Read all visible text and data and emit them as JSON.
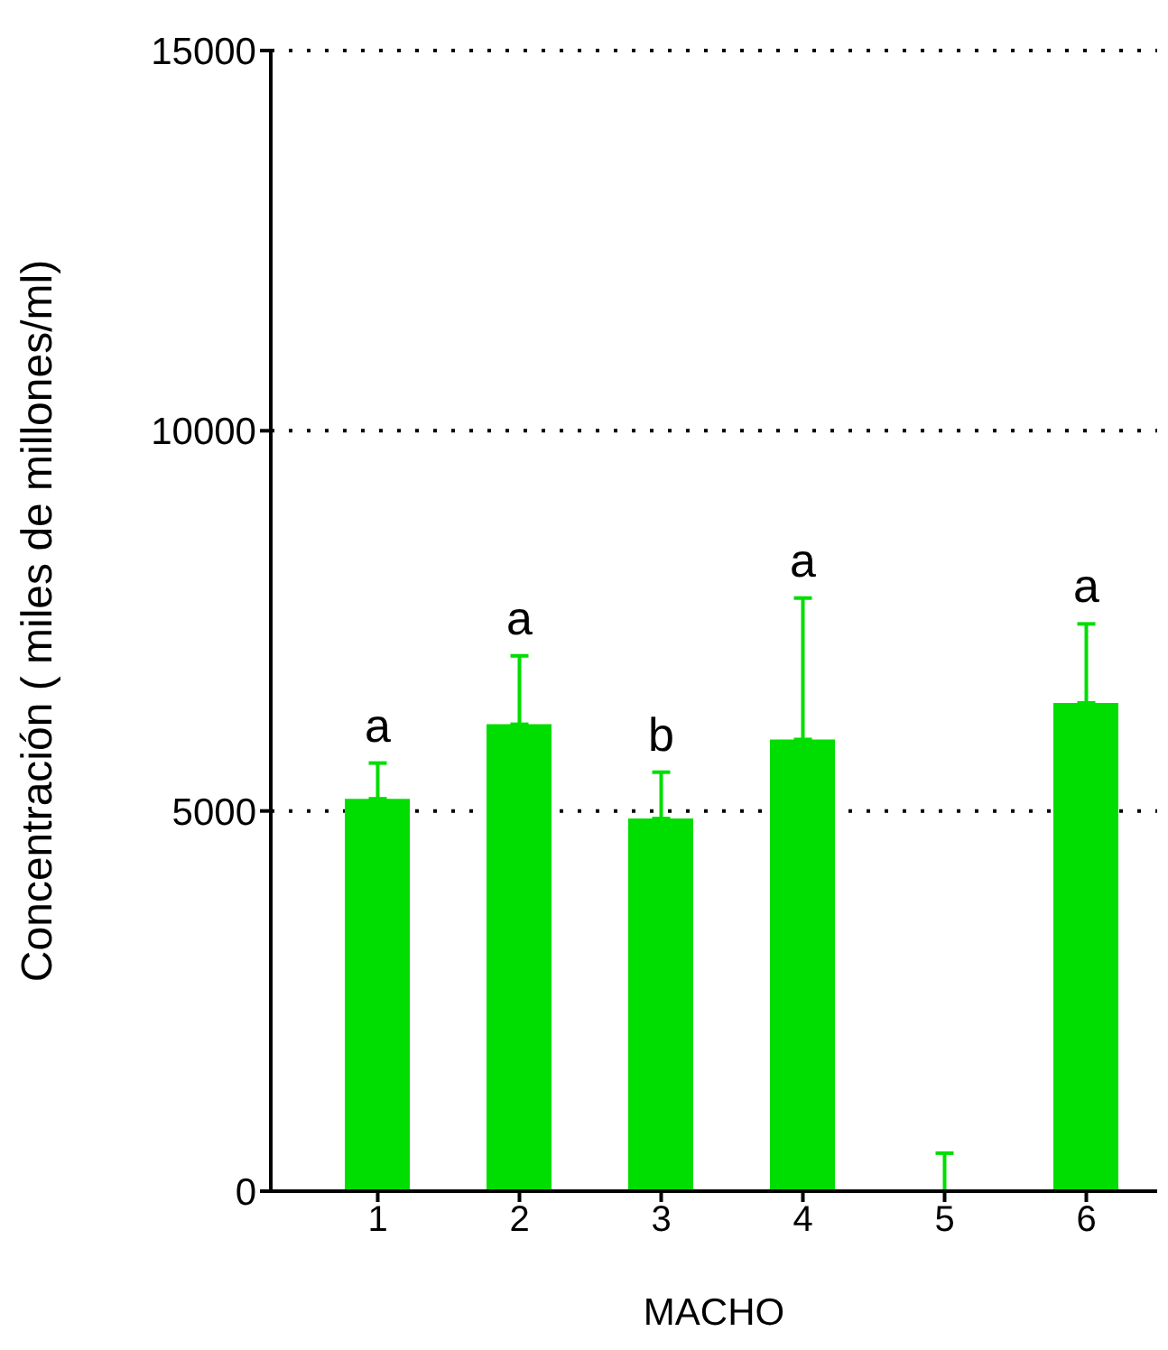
{
  "chart_data": {
    "type": "bar",
    "xlabel": "MACHO",
    "ylabel": "Concentración ( miles de millones/ml)",
    "categories": [
      "1",
      "2",
      "3",
      "4",
      "5",
      "6"
    ],
    "values": [
      5160,
      6140,
      4900,
      5940,
      0,
      6420
    ],
    "errors": [
      [
        5160,
        5630
      ],
      [
        6140,
        7040
      ],
      [
        4900,
        5510
      ],
      [
        5940,
        7800
      ],
      [
        0,
        500
      ],
      [
        6420,
        7460
      ]
    ],
    "color": "#00dd00",
    "ylim": [
      0,
      15000
    ],
    "yticks": [
      0,
      5000,
      10000,
      15000
    ],
    "grid": "y",
    "annotations": [
      {
        "text": "a",
        "x": "1",
        "y": 5630
      },
      {
        "text": "a",
        "x": "2",
        "y": 7040
      },
      {
        "text": "b",
        "x": "3",
        "y": 5510
      },
      {
        "text": "a",
        "x": "4",
        "y": 7800
      },
      {
        "text": "a",
        "x": "6",
        "y": 7460
      }
    ]
  }
}
